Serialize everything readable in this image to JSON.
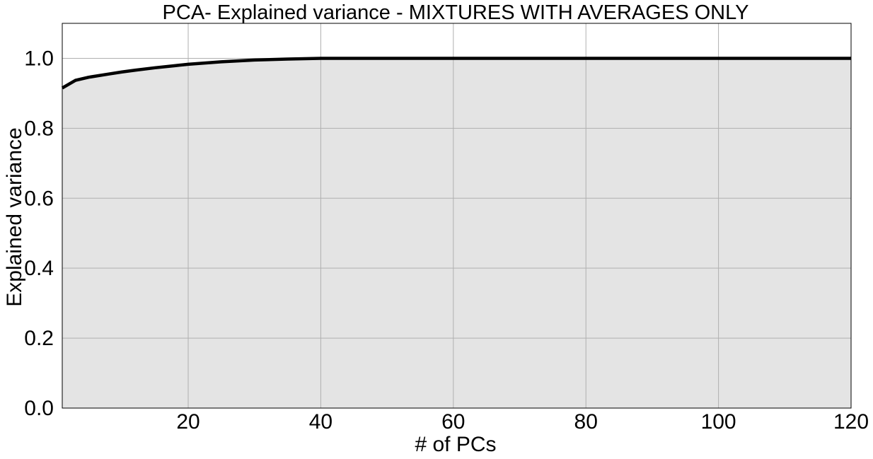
{
  "chart_data": {
    "type": "area",
    "title": "PCA- Explained variance - MIXTURES WITH AVERAGES ONLY",
    "xlabel": "# of PCs",
    "ylabel": "Explained variance",
    "xlim": [
      1,
      120
    ],
    "ylim": [
      0,
      1.1
    ],
    "xticks": [
      20,
      40,
      60,
      80,
      100,
      120
    ],
    "yticks": [
      0.0,
      0.2,
      0.4,
      0.6,
      0.8,
      1.0
    ],
    "xtick_labels": [
      "20",
      "40",
      "60",
      "80",
      "100",
      "120"
    ],
    "ytick_labels": [
      "0.0",
      "0.2",
      "0.4",
      "0.6",
      "0.8",
      "1.0"
    ],
    "grid": true,
    "series": [
      {
        "x": [
          1,
          3,
          5,
          8,
          10,
          12,
          15,
          18,
          20,
          25,
          30,
          35,
          40,
          50,
          60,
          80,
          100,
          120
        ],
        "values": [
          0.915,
          0.937,
          0.946,
          0.955,
          0.961,
          0.966,
          0.973,
          0.979,
          0.983,
          0.99,
          0.995,
          0.998,
          1.0,
          1.0,
          1.0,
          1.0,
          1.0,
          1.0
        ]
      }
    ],
    "colors": {
      "line": "#000000",
      "fill": "#e4e4e4",
      "grid": "#b0b0b0",
      "frame": "#000000"
    }
  }
}
